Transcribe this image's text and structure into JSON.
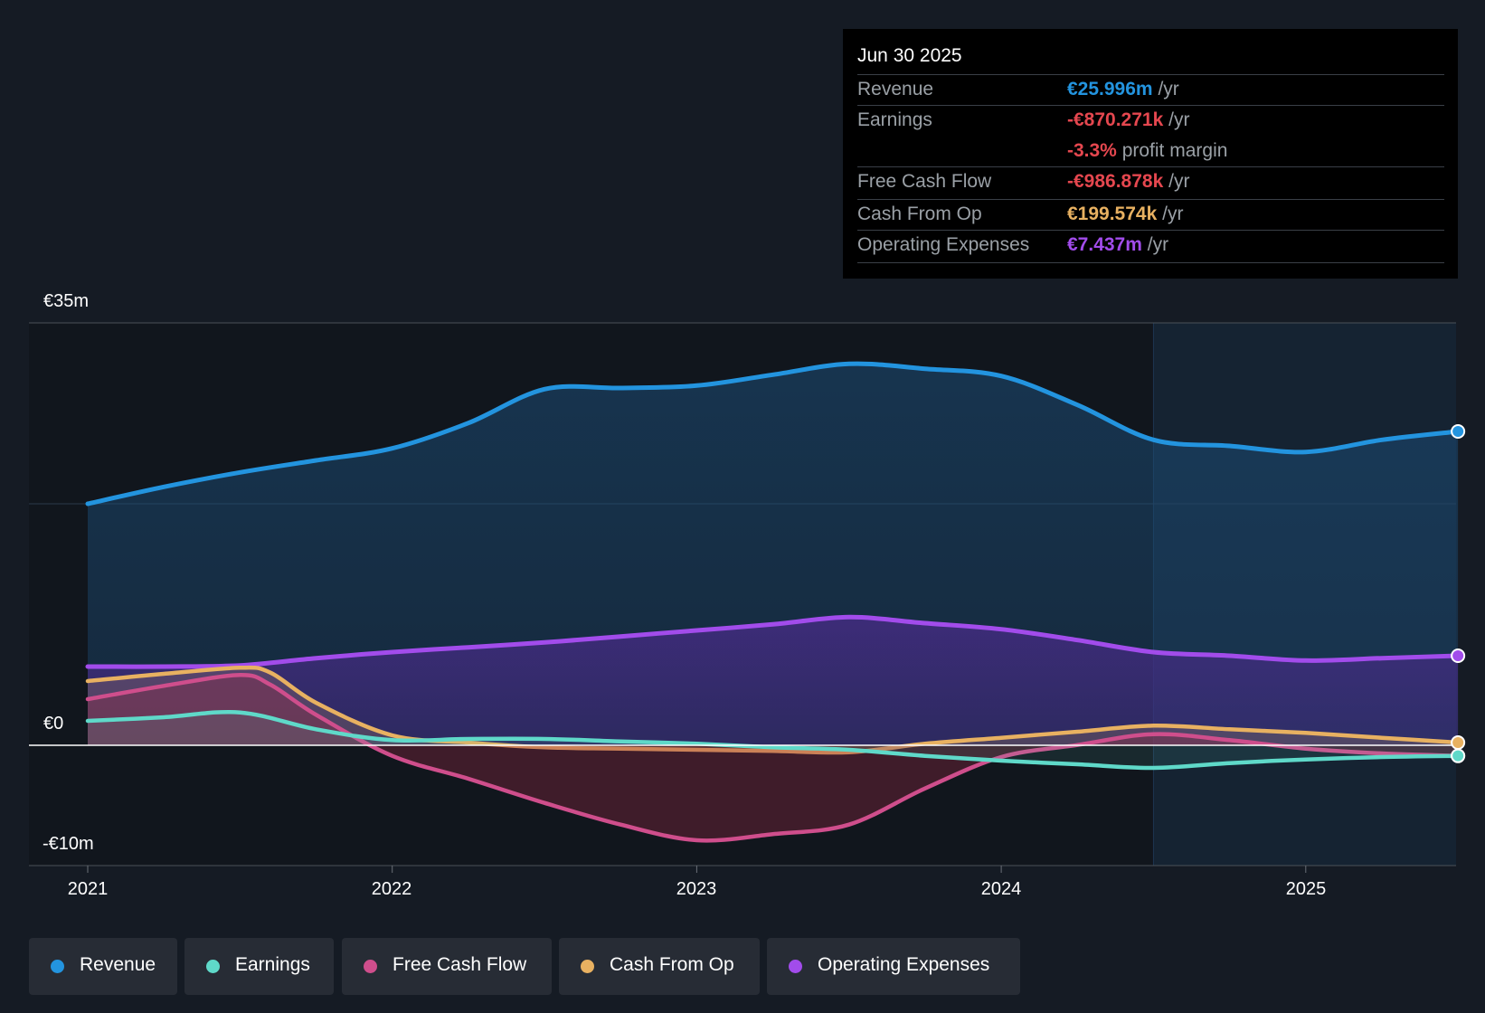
{
  "tooltip": {
    "date": "Jun 30 2025",
    "rows": [
      {
        "label": "Revenue",
        "value": "€25.996m",
        "unit": "/yr",
        "color": "#2394df"
      },
      {
        "label": "Earnings",
        "value": "-€870.271k",
        "unit": "/yr",
        "color": "#e5474f"
      },
      {
        "label": "",
        "value": "-3.3%",
        "unit": "profit margin",
        "color": "#e5474f"
      },
      {
        "label": "Free Cash Flow",
        "value": "-€986.878k",
        "unit": "/yr",
        "color": "#e5474f"
      },
      {
        "label": "Cash From Op",
        "value": "€199.574k",
        "unit": "/yr",
        "color": "#e8b161"
      },
      {
        "label": "Operating Expenses",
        "value": "€7.437m",
        "unit": "/yr",
        "color": "#a24ceb"
      }
    ]
  },
  "chart_data": {
    "type": "area",
    "y_tick_labels": [
      "€35m",
      "€0",
      "-€10m"
    ],
    "ylim": [
      -10,
      35
    ],
    "x_tick_labels": [
      "2021",
      "2022",
      "2023",
      "2024",
      "2025"
    ],
    "xlim": [
      2021.0,
      2025.5
    ],
    "forecast_shading_from": 2024.5,
    "series": [
      {
        "name": "Revenue",
        "color": "#2394df",
        "x": [
          2021.0,
          2021.25,
          2021.5,
          2021.75,
          2022.0,
          2022.25,
          2022.5,
          2022.75,
          2023.0,
          2023.25,
          2023.5,
          2023.75,
          2024.0,
          2024.25,
          2024.5,
          2024.75,
          2025.0,
          2025.25,
          2025.5
        ],
        "y": [
          20.0,
          21.4,
          22.6,
          23.6,
          24.6,
          26.7,
          29.5,
          29.6,
          29.8,
          30.7,
          31.6,
          31.2,
          30.6,
          28.2,
          25.3,
          24.8,
          24.3,
          25.3,
          26.0
        ]
      },
      {
        "name": "Operating Expenses",
        "color": "#a24ceb",
        "x": [
          2021.0,
          2021.25,
          2021.5,
          2021.75,
          2022.0,
          2022.25,
          2022.5,
          2022.75,
          2023.0,
          2023.25,
          2023.5,
          2023.75,
          2024.0,
          2024.25,
          2024.5,
          2024.75,
          2025.0,
          2025.25,
          2025.5
        ],
        "y": [
          6.5,
          6.5,
          6.6,
          7.2,
          7.7,
          8.1,
          8.5,
          9.0,
          9.5,
          10.0,
          10.6,
          10.1,
          9.6,
          8.7,
          7.7,
          7.4,
          7.0,
          7.2,
          7.4
        ]
      },
      {
        "name": "Cash From Op",
        "color": "#e8b161",
        "x": [
          2021.0,
          2021.25,
          2021.5,
          2021.6,
          2021.75,
          2022.0,
          2022.25,
          2022.5,
          2022.75,
          2023.0,
          2023.25,
          2023.5,
          2023.75,
          2024.0,
          2024.25,
          2024.5,
          2024.75,
          2025.0,
          2025.25,
          2025.5
        ],
        "y": [
          5.3,
          5.9,
          6.4,
          6.0,
          3.5,
          0.8,
          0.2,
          -0.2,
          -0.3,
          -0.4,
          -0.5,
          -0.6,
          0.1,
          0.6,
          1.1,
          1.6,
          1.3,
          1.0,
          0.6,
          0.2
        ]
      },
      {
        "name": "Free Cash Flow",
        "color": "#cf4e8c",
        "x": [
          2021.0,
          2021.25,
          2021.5,
          2021.6,
          2021.75,
          2022.0,
          2022.25,
          2022.5,
          2022.75,
          2023.0,
          2023.25,
          2023.5,
          2023.75,
          2024.0,
          2024.25,
          2024.5,
          2024.75,
          2025.0,
          2025.25,
          2025.5
        ],
        "y": [
          3.8,
          4.9,
          5.8,
          5.0,
          2.5,
          -0.9,
          -2.8,
          -4.8,
          -6.6,
          -7.9,
          -7.4,
          -6.6,
          -3.6,
          -1.0,
          0.0,
          0.9,
          0.4,
          -0.3,
          -0.7,
          -0.9
        ]
      },
      {
        "name": "Earnings",
        "color": "#5fd9c9",
        "x": [
          2021.0,
          2021.25,
          2021.5,
          2021.75,
          2022.0,
          2022.25,
          2022.5,
          2022.75,
          2023.0,
          2023.25,
          2023.5,
          2023.75,
          2024.0,
          2024.25,
          2024.5,
          2024.75,
          2025.0,
          2025.25,
          2025.5
        ],
        "y": [
          2.0,
          2.3,
          2.7,
          1.3,
          0.4,
          0.5,
          0.5,
          0.3,
          0.1,
          -0.2,
          -0.4,
          -0.9,
          -1.3,
          -1.6,
          -1.9,
          -1.5,
          -1.2,
          -1.0,
          -0.9
        ]
      }
    ]
  },
  "legend": [
    {
      "label": "Revenue",
      "color": "#2394df"
    },
    {
      "label": "Earnings",
      "color": "#5fd9c9"
    },
    {
      "label": "Free Cash Flow",
      "color": "#cf4e8c"
    },
    {
      "label": "Cash From Op",
      "color": "#e8b161"
    },
    {
      "label": "Operating Expenses",
      "color": "#a24ceb"
    }
  ]
}
